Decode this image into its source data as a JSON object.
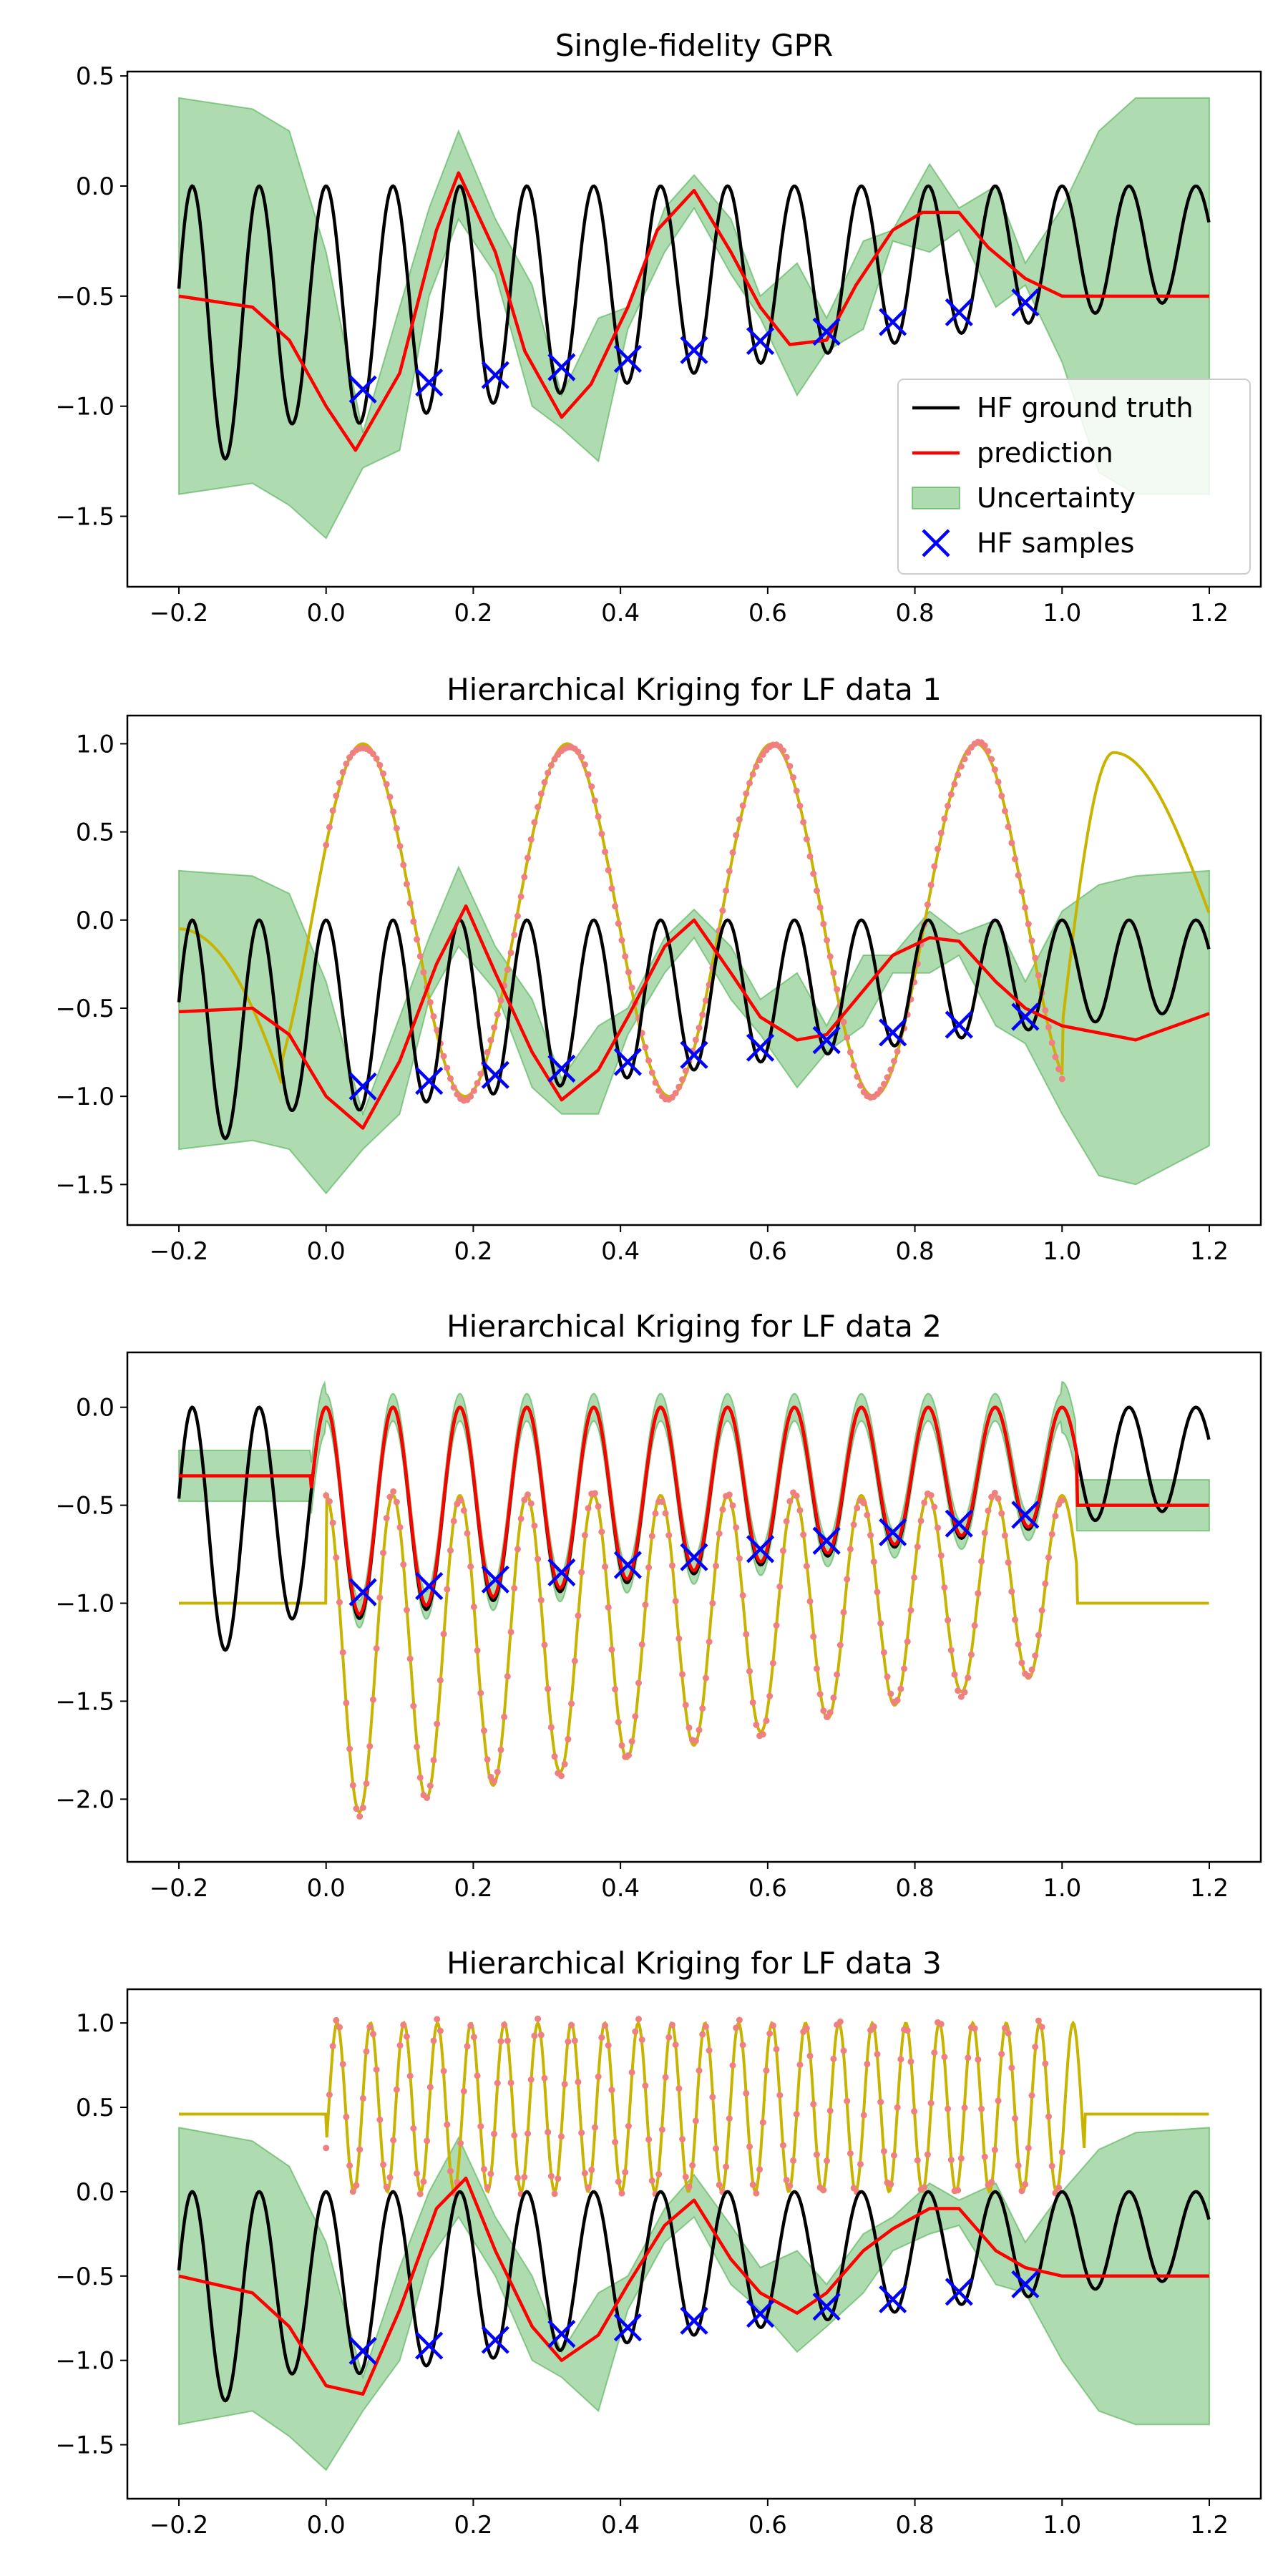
{
  "figure": {
    "background": "#ffffff"
  },
  "legend": {
    "entries": [
      {
        "label": "HF ground truth",
        "kind": "line",
        "color": "#000000"
      },
      {
        "label": "prediction",
        "kind": "line",
        "color": "#ff0000"
      },
      {
        "label": "Uncertainty",
        "kind": "patch",
        "color": "#4caf50"
      },
      {
        "label": "HF samples",
        "kind": "marker",
        "color": "#0000ff"
      }
    ]
  },
  "chart_data": [
    {
      "type": "line",
      "title": "Single-fidelity GPR",
      "xlabel": "",
      "ylabel": "",
      "xlim": [
        -0.27,
        1.27
      ],
      "ylim": [
        -1.82,
        0.52
      ],
      "xticks": [
        -0.2,
        0.0,
        0.2,
        0.4,
        0.6,
        0.8,
        1.0,
        1.2
      ],
      "yticks": [
        -1.5,
        -1.0,
        -0.5,
        0.0,
        0.5
      ],
      "grid": false,
      "legend_position": "lower-right",
      "ground_truth": {
        "name": "HF ground truth",
        "color": "#000000",
        "function": "HF ground truth curve (oscillating, sampled densely on [-0.2, 1.2])"
      },
      "hf_samples": {
        "name": "HF samples",
        "color": "#0000ff",
        "marker": "x",
        "x": [
          0.05,
          0.14,
          0.23,
          0.32,
          0.41,
          0.5,
          0.59,
          0.68,
          0.77,
          0.86,
          0.95
        ]
      },
      "prediction": {
        "name": "prediction",
        "color": "#ff0000",
        "x": [
          -0.2,
          -0.1,
          -0.05,
          0.0,
          0.04,
          0.1,
          0.15,
          0.18,
          0.23,
          0.27,
          0.32,
          0.36,
          0.41,
          0.45,
          0.5,
          0.55,
          0.59,
          0.63,
          0.68,
          0.72,
          0.77,
          0.81,
          0.86,
          0.9,
          0.95,
          1.0,
          1.1,
          1.2
        ],
        "y": [
          -0.5,
          -0.55,
          -0.7,
          -1.0,
          -1.2,
          -0.85,
          -0.2,
          0.06,
          -0.3,
          -0.75,
          -1.05,
          -0.9,
          -0.55,
          -0.2,
          -0.02,
          -0.3,
          -0.55,
          -0.72,
          -0.7,
          -0.45,
          -0.2,
          -0.12,
          -0.12,
          -0.28,
          -0.42,
          -0.5,
          -0.5,
          -0.5
        ]
      },
      "uncertainty": {
        "name": "Uncertainty",
        "color": "#4caf50",
        "x": [
          -0.2,
          -0.1,
          -0.05,
          0.0,
          0.05,
          0.1,
          0.14,
          0.18,
          0.23,
          0.28,
          0.32,
          0.37,
          0.41,
          0.46,
          0.5,
          0.55,
          0.59,
          0.64,
          0.68,
          0.73,
          0.77,
          0.82,
          0.86,
          0.91,
          0.95,
          1.0,
          1.05,
          1.1,
          1.2
        ],
        "upper": [
          0.4,
          0.35,
          0.25,
          -0.3,
          -1.12,
          -0.55,
          -0.1,
          0.25,
          -0.15,
          -0.45,
          -0.95,
          -0.6,
          -0.55,
          -0.1,
          0.05,
          -0.15,
          -0.5,
          -0.35,
          -0.6,
          -0.25,
          -0.2,
          0.1,
          -0.1,
          0.0,
          -0.35,
          -0.1,
          0.25,
          0.4,
          0.4
        ],
        "lower": [
          -1.4,
          -1.35,
          -1.45,
          -1.6,
          -1.28,
          -1.2,
          -0.5,
          -0.15,
          -0.4,
          -1.0,
          -1.1,
          -1.25,
          -0.65,
          -0.3,
          -0.1,
          -0.4,
          -0.6,
          -0.95,
          -0.75,
          -0.65,
          -0.25,
          -0.3,
          -0.2,
          -0.55,
          -0.45,
          -0.8,
          -1.3,
          -1.4,
          -1.4
        ]
      }
    },
    {
      "type": "line",
      "title": "Hierarchical Kriging for LF data 1",
      "xlabel": "",
      "ylabel": "",
      "xlim": [
        -0.27,
        1.27
      ],
      "ylim": [
        -1.73,
        1.16
      ],
      "xticks": [
        -0.2,
        0.0,
        0.2,
        0.4,
        0.6,
        0.8,
        1.0,
        1.2
      ],
      "yticks": [
        -1.5,
        -1.0,
        -0.5,
        0.0,
        0.5,
        1.0
      ],
      "grid": false,
      "ground_truth": {
        "name": "HF ground truth",
        "color": "#000000"
      },
      "lf_model": {
        "color": "#c8b400",
        "x": [
          -0.2,
          -0.15,
          -0.1,
          -0.06,
          0.0,
          0.05,
          0.1,
          0.14,
          0.18,
          0.23,
          0.28,
          0.32,
          0.37,
          0.41,
          0.46,
          0.5,
          0.55,
          0.59,
          0.63,
          0.67,
          0.72,
          0.76,
          0.8,
          0.85,
          0.9,
          0.95,
          1.0,
          1.07,
          1.13,
          1.2
        ],
        "y": [
          -0.05,
          -0.2,
          -0.6,
          -0.95,
          -0.1,
          0.95,
          0.55,
          -0.5,
          -1.0,
          -0.2,
          0.75,
          1.0,
          0.2,
          -0.95,
          -0.3,
          0.8,
          0.9,
          -0.15,
          -0.95,
          -0.5,
          0.6,
          1.0,
          0.75,
          -0.7,
          -1.0,
          -0.6,
          0.5,
          0.95,
          0.5,
          0.05
        ]
      },
      "lf_samples": {
        "color": "#f08080",
        "range": [
          0.0,
          1.0
        ],
        "count": 220
      },
      "hf_samples": {
        "name": "HF samples",
        "color": "#0000ff",
        "marker": "x",
        "x": [
          0.05,
          0.14,
          0.23,
          0.32,
          0.41,
          0.5,
          0.59,
          0.68,
          0.77,
          0.86,
          0.95
        ]
      },
      "prediction": {
        "name": "prediction",
        "color": "#ff0000",
        "x": [
          -0.2,
          -0.1,
          -0.05,
          0.0,
          0.05,
          0.1,
          0.15,
          0.19,
          0.23,
          0.28,
          0.32,
          0.37,
          0.41,
          0.46,
          0.5,
          0.55,
          0.59,
          0.64,
          0.68,
          0.73,
          0.77,
          0.82,
          0.86,
          0.91,
          0.95,
          1.0,
          1.1,
          1.2
        ],
        "y": [
          -0.52,
          -0.5,
          -0.65,
          -1.0,
          -1.18,
          -0.8,
          -0.25,
          0.08,
          -0.3,
          -0.75,
          -1.02,
          -0.85,
          -0.55,
          -0.15,
          0.0,
          -0.3,
          -0.55,
          -0.68,
          -0.65,
          -0.4,
          -0.2,
          -0.1,
          -0.12,
          -0.35,
          -0.5,
          -0.6,
          -0.68,
          -0.53
        ]
      },
      "uncertainty": {
        "name": "Uncertainty",
        "color": "#4caf50",
        "x": [
          -0.2,
          -0.1,
          -0.05,
          0.0,
          0.05,
          0.1,
          0.14,
          0.18,
          0.23,
          0.28,
          0.32,
          0.37,
          0.41,
          0.46,
          0.5,
          0.55,
          0.59,
          0.64,
          0.68,
          0.73,
          0.77,
          0.82,
          0.86,
          0.91,
          0.95,
          1.0,
          1.05,
          1.1,
          1.2
        ],
        "upper": [
          0.28,
          0.25,
          0.15,
          -0.35,
          -1.1,
          -0.55,
          -0.1,
          0.3,
          -0.15,
          -0.45,
          -0.9,
          -0.6,
          -0.5,
          -0.1,
          0.06,
          -0.15,
          -0.45,
          -0.3,
          -0.6,
          -0.2,
          -0.2,
          0.05,
          -0.08,
          0.0,
          -0.35,
          0.05,
          0.2,
          0.25,
          0.28
        ],
        "lower": [
          -1.3,
          -1.25,
          -1.3,
          -1.55,
          -1.3,
          -1.1,
          -0.45,
          -0.15,
          -0.4,
          -0.95,
          -1.1,
          -1.1,
          -0.65,
          -0.3,
          -0.1,
          -0.45,
          -0.65,
          -0.95,
          -0.75,
          -0.6,
          -0.3,
          -0.3,
          -0.2,
          -0.6,
          -0.7,
          -1.1,
          -1.45,
          -1.5,
          -1.28
        ]
      }
    },
    {
      "type": "line",
      "title": "Hierarchical Kriging for LF data 2",
      "xlabel": "",
      "ylabel": "",
      "xlim": [
        -0.27,
        1.27
      ],
      "ylim": [
        -2.32,
        0.28
      ],
      "xticks": [
        -0.2,
        0.0,
        0.2,
        0.4,
        0.6,
        0.8,
        1.0,
        1.2
      ],
      "yticks": [
        -2.0,
        -1.5,
        -1.0,
        -0.5,
        0.0
      ],
      "grid": false,
      "ground_truth": {
        "name": "HF ground truth",
        "color": "#000000"
      },
      "lf_model": {
        "color": "#c8b400",
        "function": "LF model 2 (shifted/scaled oscillation; flat -1.0 outside [0, 1])"
      },
      "lf_samples": {
        "color": "#f08080",
        "range": [
          0.0,
          1.0
        ],
        "count": 220
      },
      "hf_samples": {
        "name": "HF samples",
        "color": "#0000ff",
        "marker": "x",
        "x": [
          0.05,
          0.14,
          0.23,
          0.32,
          0.41,
          0.5,
          0.59,
          0.68,
          0.77,
          0.86,
          0.95
        ]
      },
      "prediction": {
        "name": "prediction",
        "color": "#ff0000",
        "function": "tracks HF ground truth on [0, 1]; -0.35 / -0.5 plateaus outside"
      },
      "uncertainty": {
        "name": "Uncertainty",
        "color": "#4caf50",
        "band": "narrow band around prediction"
      }
    },
    {
      "type": "line",
      "title": "Hierarchical Kriging for LF data 3",
      "xlabel": "",
      "ylabel": "",
      "xlim": [
        -0.27,
        1.27
      ],
      "ylim": [
        -1.82,
        1.2
      ],
      "xticks": [
        -0.2,
        0.0,
        0.2,
        0.4,
        0.6,
        0.8,
        1.0,
        1.2
      ],
      "yticks": [
        -1.5,
        -1.0,
        -0.5,
        0.0,
        0.5,
        1.0
      ],
      "grid": false,
      "ground_truth": {
        "name": "HF ground truth",
        "color": "#000000"
      },
      "lf_model": {
        "color": "#c8b400",
        "function": "LF model 3 (high-frequency oscillation between 0.0 and 1.0; flat 0.46 outside [0, 1])"
      },
      "lf_samples": {
        "color": "#f08080",
        "range": [
          0.0,
          1.0
        ],
        "count": 220
      },
      "hf_samples": {
        "name": "HF samples",
        "color": "#0000ff",
        "marker": "x",
        "x": [
          0.05,
          0.14,
          0.23,
          0.32,
          0.41,
          0.5,
          0.59,
          0.68,
          0.77,
          0.86,
          0.95
        ]
      },
      "prediction": {
        "name": "prediction",
        "color": "#ff0000",
        "x": [
          -0.2,
          -0.1,
          -0.05,
          0.0,
          0.05,
          0.1,
          0.15,
          0.19,
          0.23,
          0.28,
          0.32,
          0.37,
          0.41,
          0.46,
          0.5,
          0.55,
          0.59,
          0.64,
          0.68,
          0.73,
          0.77,
          0.82,
          0.86,
          0.91,
          0.95,
          1.0,
          1.1,
          1.2
        ],
        "y": [
          -0.5,
          -0.6,
          -0.8,
          -1.15,
          -1.2,
          -0.7,
          -0.1,
          0.08,
          -0.35,
          -0.8,
          -1.0,
          -0.85,
          -0.55,
          -0.2,
          -0.05,
          -0.4,
          -0.6,
          -0.72,
          -0.6,
          -0.35,
          -0.22,
          -0.1,
          -0.1,
          -0.35,
          -0.45,
          -0.5,
          -0.5,
          -0.5
        ]
      },
      "uncertainty": {
        "name": "Uncertainty",
        "color": "#4caf50",
        "x": [
          -0.2,
          -0.1,
          -0.05,
          0.0,
          0.05,
          0.1,
          0.14,
          0.18,
          0.23,
          0.28,
          0.32,
          0.37,
          0.41,
          0.46,
          0.5,
          0.55,
          0.59,
          0.64,
          0.68,
          0.73,
          0.77,
          0.82,
          0.86,
          0.91,
          0.95,
          1.0,
          1.05,
          1.1,
          1.2
        ],
        "upper": [
          0.38,
          0.3,
          0.15,
          -0.3,
          -1.1,
          -0.45,
          0.0,
          0.32,
          -0.15,
          -0.5,
          -0.95,
          -0.6,
          -0.5,
          -0.1,
          0.1,
          -0.2,
          -0.45,
          -0.35,
          -0.55,
          -0.25,
          -0.15,
          0.05,
          -0.05,
          0.05,
          -0.3,
          0.0,
          0.25,
          0.35,
          0.38
        ],
        "lower": [
          -1.38,
          -1.3,
          -1.45,
          -1.65,
          -1.3,
          -1.0,
          -0.4,
          -0.15,
          -0.5,
          -1.0,
          -1.1,
          -1.3,
          -0.7,
          -0.3,
          -0.15,
          -0.55,
          -0.7,
          -0.95,
          -0.8,
          -0.6,
          -0.35,
          -0.25,
          -0.2,
          -0.55,
          -0.6,
          -1.0,
          -1.3,
          -1.38,
          -1.38
        ]
      }
    }
  ]
}
